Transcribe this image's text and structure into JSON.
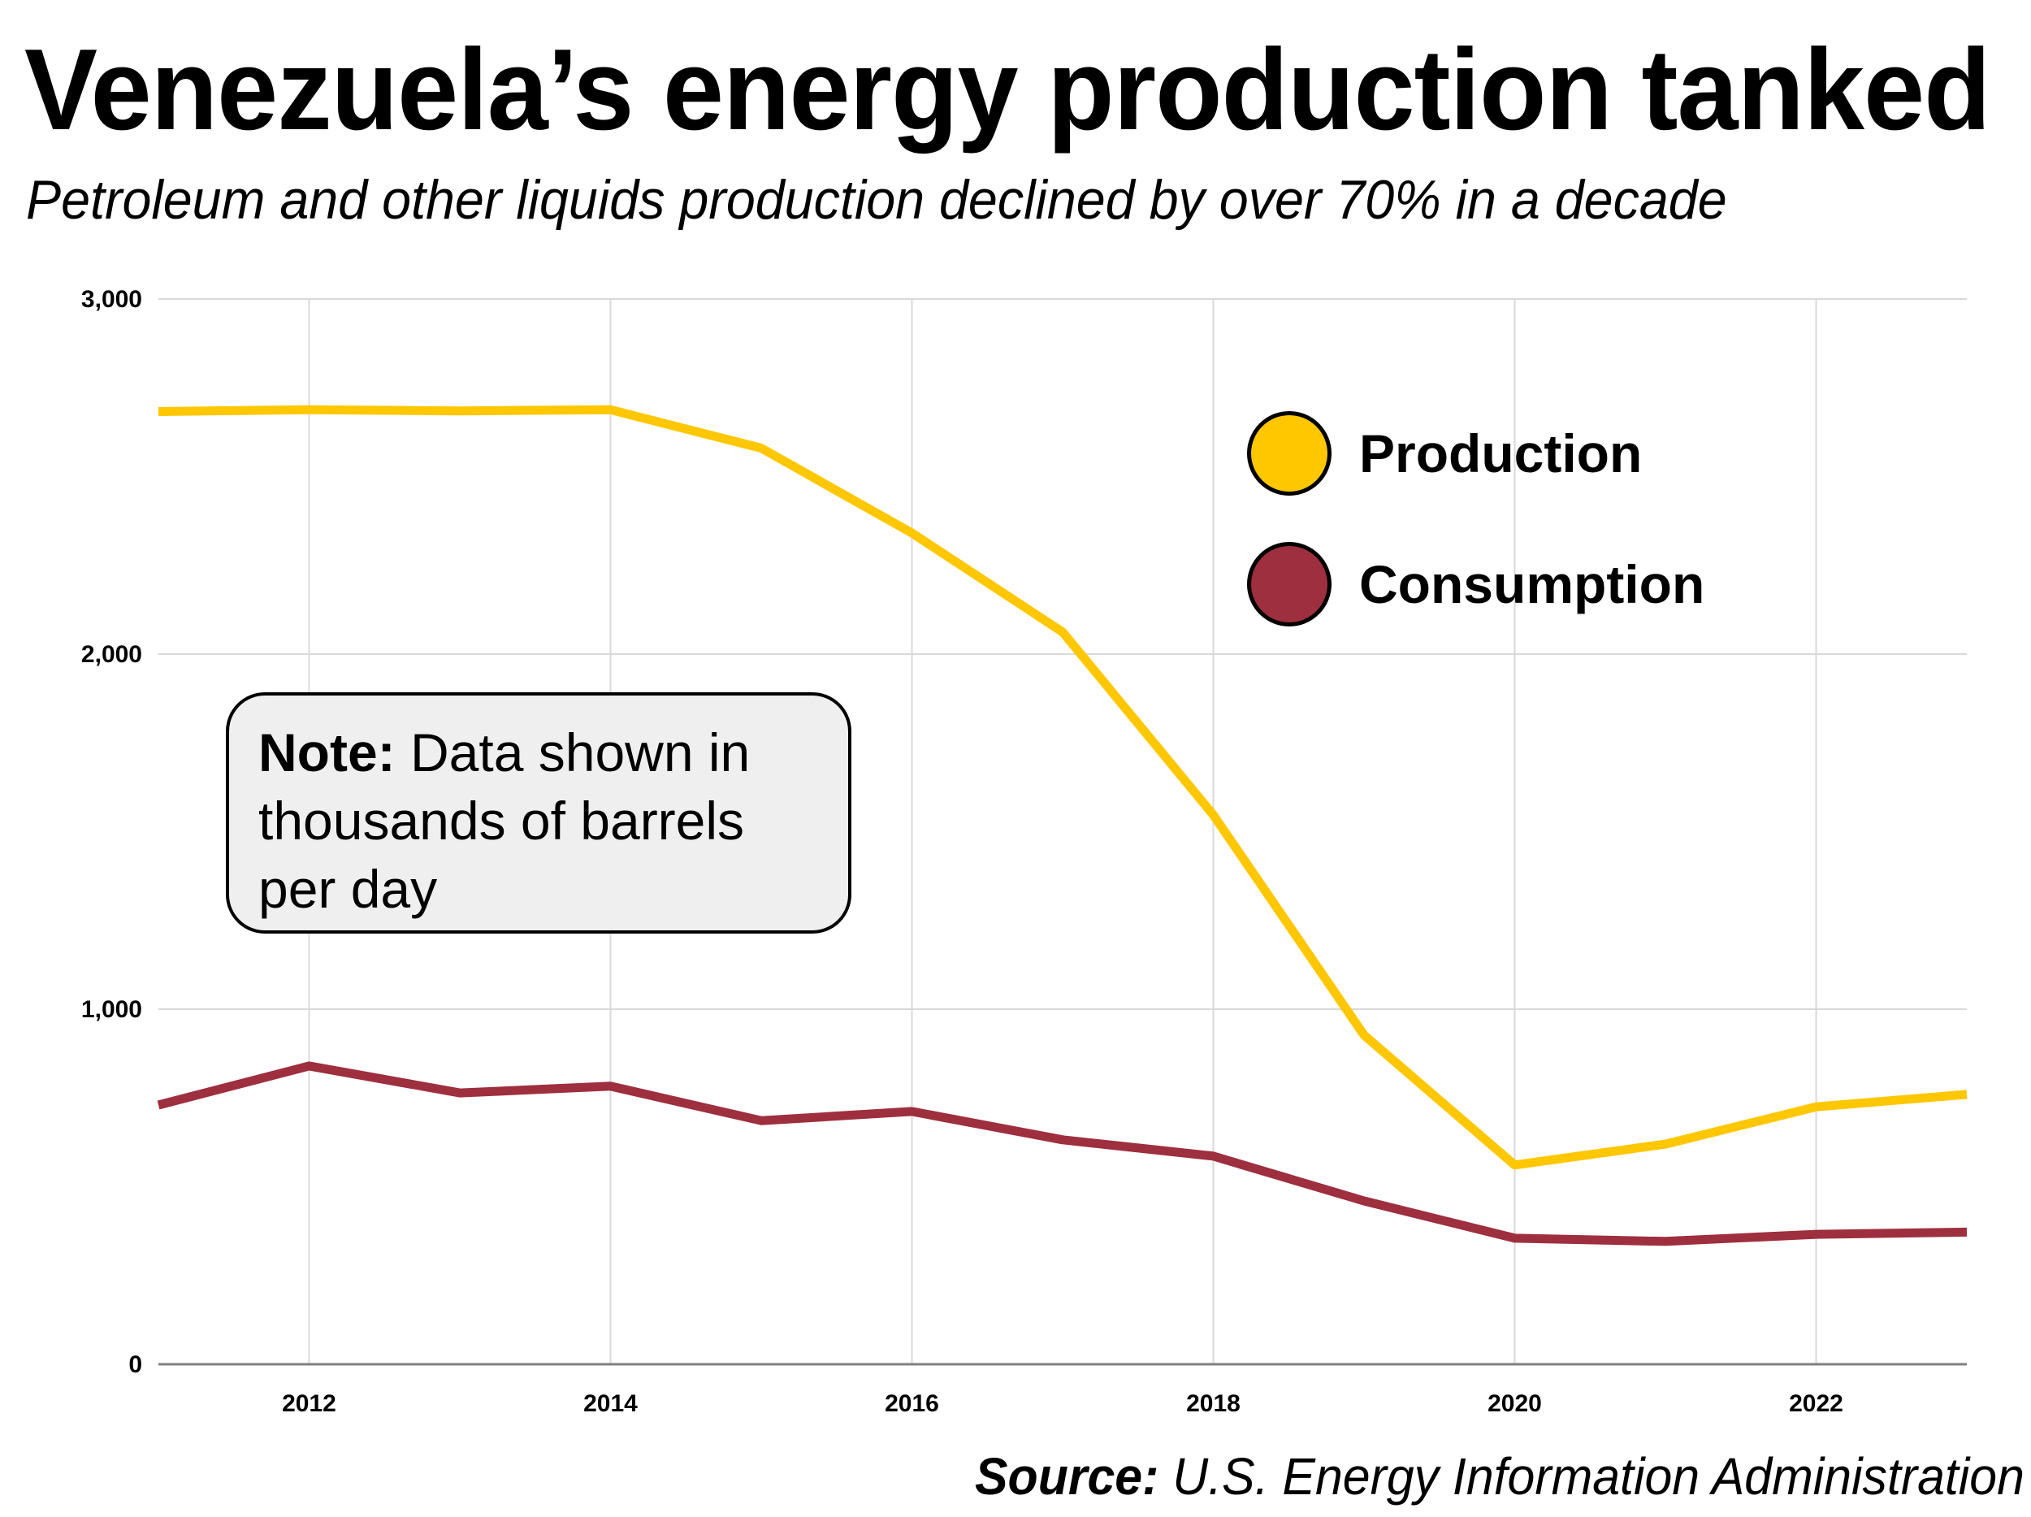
{
  "title": "Venezuela’s energy production tanked",
  "subtitle": "Petroleum and other liquids production declined by over 70% in a decade",
  "note": {
    "label": "Note:",
    "text": " Data shown in thousands of barrels per day"
  },
  "source": {
    "label": "Source:",
    "text": " U.S. Energy Information Administration"
  },
  "chart_data": {
    "type": "line",
    "title": "Venezuela’s energy production tanked",
    "subtitle": "Petroleum and other liquids production declined by over 70% in a decade",
    "xlabel": "",
    "ylabel": "Thousands of barrels per day",
    "x": [
      2011,
      2012,
      2013,
      2014,
      2015,
      2016,
      2017,
      2018,
      2019,
      2020,
      2021,
      2022,
      2023
    ],
    "xlim": [
      2011,
      2023
    ],
    "ylim": [
      0,
      3000
    ],
    "xticks": [
      2012,
      2014,
      2016,
      2018,
      2020,
      2022
    ],
    "xtick_labels": [
      "2012",
      "2014",
      "2016",
      "2018",
      "2020",
      "2022"
    ],
    "yticks": [
      0,
      1000,
      2000,
      3000
    ],
    "ytick_labels": [
      "0",
      "1,000",
      "2,000",
      "3,000"
    ],
    "grid": true,
    "legend_position": "top-right",
    "series": [
      {
        "name": "Production",
        "color": "#FEC700",
        "values": [
          2683,
          2688,
          2685,
          2688,
          2580,
          2341,
          2062,
          1547,
          927,
          561,
          620,
          725,
          760
        ]
      },
      {
        "name": "Consumption",
        "color": "#9E2F3E",
        "values": [
          730,
          840,
          764,
          783,
          686,
          712,
          632,
          586,
          460,
          355,
          346,
          366,
          372
        ]
      }
    ],
    "annotations": [
      "Note: Data shown in thousands of barrels per day"
    ],
    "source": "Source: U.S. Energy Information Administration"
  }
}
